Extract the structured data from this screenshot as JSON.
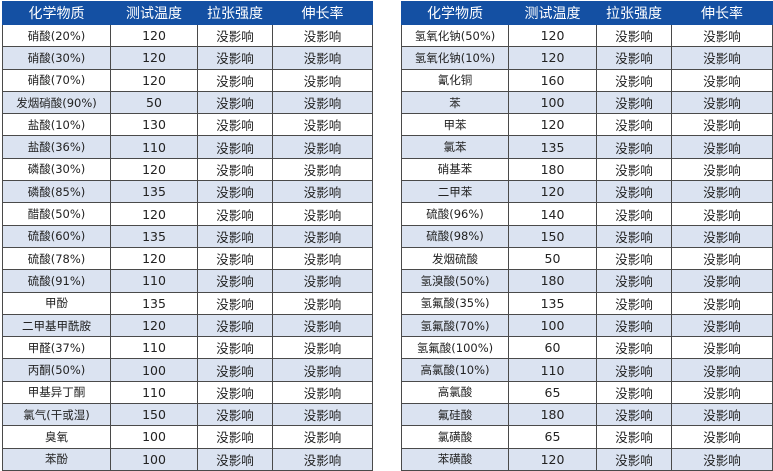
{
  "headers": [
    "化学物质",
    "测试温度",
    "拉张强度",
    "伸长率"
  ],
  "left_table": [
    [
      "硝酸(20%)",
      "120",
      "没影响",
      "没影响"
    ],
    [
      "硝酸(30%)",
      "120",
      "没影响",
      "没影响"
    ],
    [
      "硝酸(70%)",
      "120",
      "没影响",
      "没影响"
    ],
    [
      "发烟硝酸(90%)",
      "50",
      "没影响",
      "没影响"
    ],
    [
      "盐酸(10%)",
      "130",
      "没影响",
      "没影响"
    ],
    [
      "盐酸(36%)",
      "110",
      "没影响",
      "没影响"
    ],
    [
      "磷酸(30%)",
      "120",
      "没影响",
      "没影响"
    ],
    [
      "磷酸(85%)",
      "135",
      "没影响",
      "没影响"
    ],
    [
      "醋酸(50%)",
      "120",
      "没影响",
      "没影响"
    ],
    [
      "硫酸(60%)",
      "135",
      "没影响",
      "没影响"
    ],
    [
      "硫酸(78%)",
      "120",
      "没影响",
      "没影响"
    ],
    [
      "硫酸(91%)",
      "110",
      "没影响",
      "没影响"
    ],
    [
      "甲酚",
      "135",
      "没影响",
      "没影响"
    ],
    [
      "二甲基甲酰胺",
      "120",
      "没影响",
      "没影响"
    ],
    [
      "甲醛(37%)",
      "110",
      "没影响",
      "没影响"
    ],
    [
      "丙酮(50%)",
      "100",
      "没影响",
      "没影响"
    ],
    [
      "甲基异丁酮",
      "110",
      "没影响",
      "没影响"
    ],
    [
      "氯气(干或湿)",
      "150",
      "没影响",
      "没影响"
    ],
    [
      "臭氧",
      "100",
      "没影响",
      "没影响"
    ],
    [
      "苯酚",
      "100",
      "没影响",
      "没影响"
    ]
  ],
  "right_table": [
    [
      "氢氧化钠(50%)",
      "120",
      "没影响",
      "没影响"
    ],
    [
      "氢氧化钠(10%)",
      "120",
      "没影响",
      "没影响"
    ],
    [
      "氰化铜",
      "160",
      "没影响",
      "没影响"
    ],
    [
      "苯",
      "100",
      "没影响",
      "没影响"
    ],
    [
      "甲苯",
      "120",
      "没影响",
      "没影响"
    ],
    [
      "氯苯",
      "135",
      "没影响",
      "没影响"
    ],
    [
      "硝基苯",
      "180",
      "没影响",
      "没影响"
    ],
    [
      "二甲苯",
      "120",
      "没影响",
      "没影响"
    ],
    [
      "硫酸(96%)",
      "140",
      "没影响",
      "没影响"
    ],
    [
      "硫酸(98%)",
      "150",
      "没影响",
      "没影响"
    ],
    [
      "发烟硫酸",
      "50",
      "没影响",
      "没影响"
    ],
    [
      "氢溴酸(50%)",
      "180",
      "没影响",
      "没影响"
    ],
    [
      "氢氟酸(35%)",
      "135",
      "没影响",
      "没影响"
    ],
    [
      "氢氟酸(70%)",
      "100",
      "没影响",
      "没影响"
    ],
    [
      "氢氟酸(100%)",
      "60",
      "没影响",
      "没影响"
    ],
    [
      "高氯酸(10%)",
      "110",
      "没影响",
      "没影响"
    ],
    [
      "高氯酸",
      "65",
      "没影响",
      "没影响"
    ],
    [
      "氟硅酸",
      "180",
      "没影响",
      "没影响"
    ],
    [
      "氯磺酸",
      "65",
      "没影响",
      "没影响"
    ],
    [
      "苯磺酸",
      "120",
      "没影响",
      "没影响"
    ]
  ],
  "colors": {
    "header_bg": "#1450a3",
    "header_text": "#ffffff",
    "stripe": "#dbe3f1"
  }
}
